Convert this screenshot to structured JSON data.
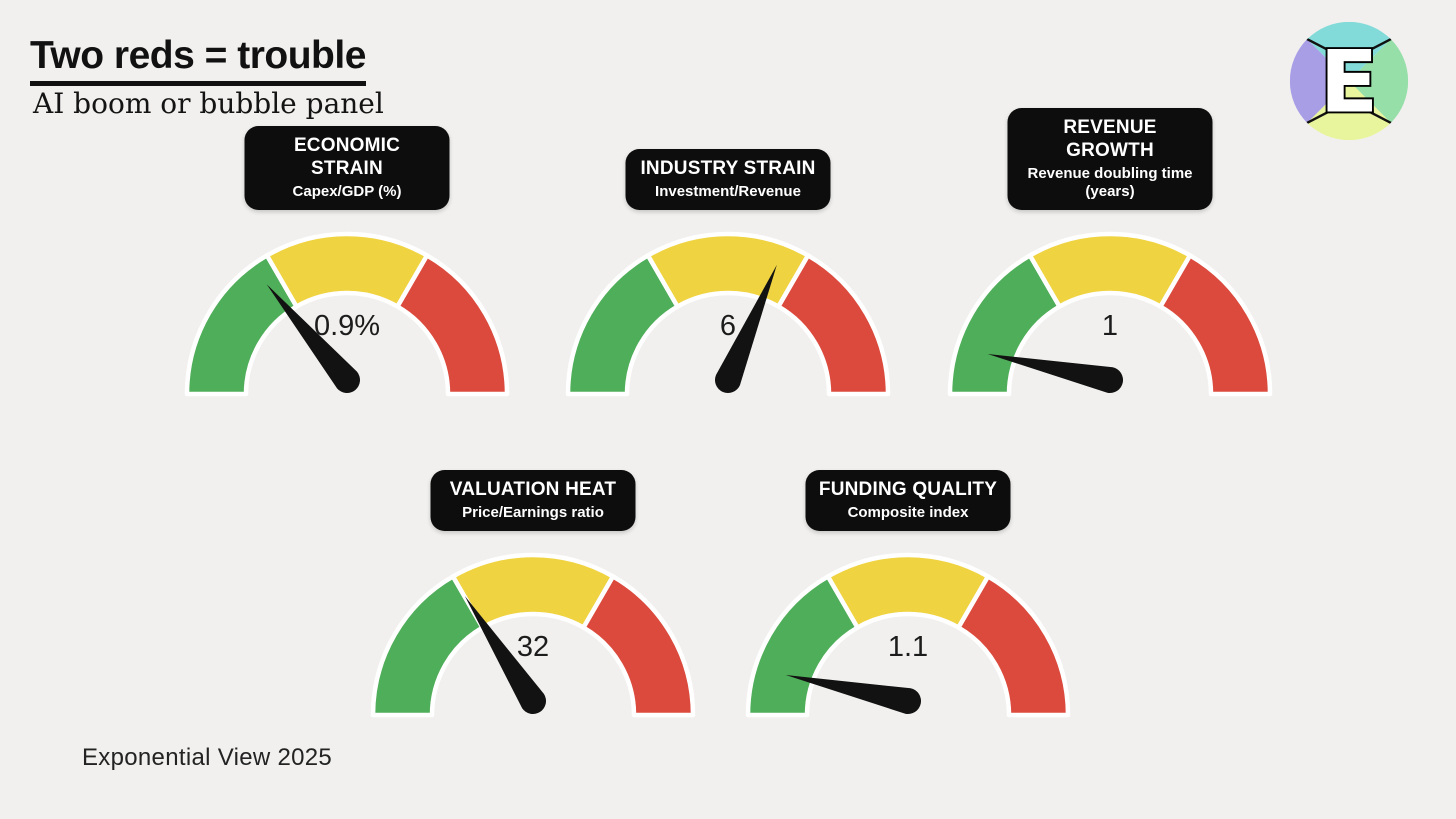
{
  "header": {
    "title": "Two reds = trouble",
    "subtitle": "AI boom or bubble panel",
    "logo": {
      "letter": "E",
      "colors": {
        "top": "#82dbd9",
        "right": "#96dfa9",
        "bottom": "#e9f59c",
        "left": "#a89ee6"
      }
    }
  },
  "footer": {
    "credit": "Exponential View 2025"
  },
  "palette": {
    "background": "#f1f0ee",
    "green": "#4fae59",
    "yellow": "#f0d340",
    "red": "#db4a3c",
    "needle": "#121212",
    "label_bg": "#0d0d0d",
    "label_text": "#ffffff",
    "value_text": "#1c1c1c"
  },
  "gauge_zones": [
    {
      "color": "green",
      "from_deg": 0,
      "to_deg": 60
    },
    {
      "color": "yellow",
      "from_deg": 60,
      "to_deg": 120
    },
    {
      "color": "red",
      "from_deg": 120,
      "to_deg": 180
    }
  ],
  "chart_data": [
    {
      "type": "gauge",
      "title": "ECONOMIC STRAIN",
      "subtitle": "Capex/GDP (%)",
      "value_label": "0.9%",
      "value": 0.9,
      "needle_position_deg": 50,
      "needle_zone": "green"
    },
    {
      "type": "gauge",
      "title": "INDUSTRY STRAIN",
      "subtitle": "Investment/Revenue",
      "value_label": "6",
      "value": 6,
      "needle_position_deg": 113,
      "needle_zone": "yellow"
    },
    {
      "type": "gauge",
      "title": "REVENUE GROWTH",
      "subtitle": "Revenue doubling time (years)",
      "value_label": "1",
      "value": 1,
      "needle_position_deg": 12,
      "needle_zone": "green"
    },
    {
      "type": "gauge",
      "title": "VALUATION HEAT",
      "subtitle": "Price/Earnings ratio",
      "value_label": "32",
      "value": 32,
      "needle_position_deg": 57,
      "needle_zone": "green"
    },
    {
      "type": "gauge",
      "title": "FUNDING QUALITY",
      "subtitle": "Composite index",
      "value_label": "1.1",
      "value": 1.1,
      "needle_position_deg": 12,
      "needle_zone": "green"
    }
  ]
}
